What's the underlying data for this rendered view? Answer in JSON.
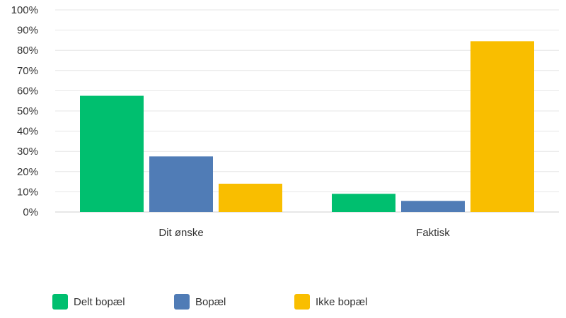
{
  "chart_data": {
    "type": "bar",
    "categories": [
      "Dit ønske",
      "Faktisk"
    ],
    "series": [
      {
        "name": "Delt bopæl",
        "values": [
          57.5,
          9
        ],
        "color": "#00BF6F"
      },
      {
        "name": "Bopæl",
        "values": [
          27.5,
          5.5
        ],
        "color": "#507CB6"
      },
      {
        "name": "Ikke bopæl",
        "values": [
          14,
          84.5
        ],
        "color": "#F9BE00"
      }
    ],
    "yticks": [
      "0%",
      "10%",
      "20%",
      "30%",
      "40%",
      "50%",
      "60%",
      "70%",
      "80%",
      "90%",
      "100%"
    ],
    "ylim": [
      0,
      100
    ],
    "grid": true,
    "legend": "bottom"
  }
}
